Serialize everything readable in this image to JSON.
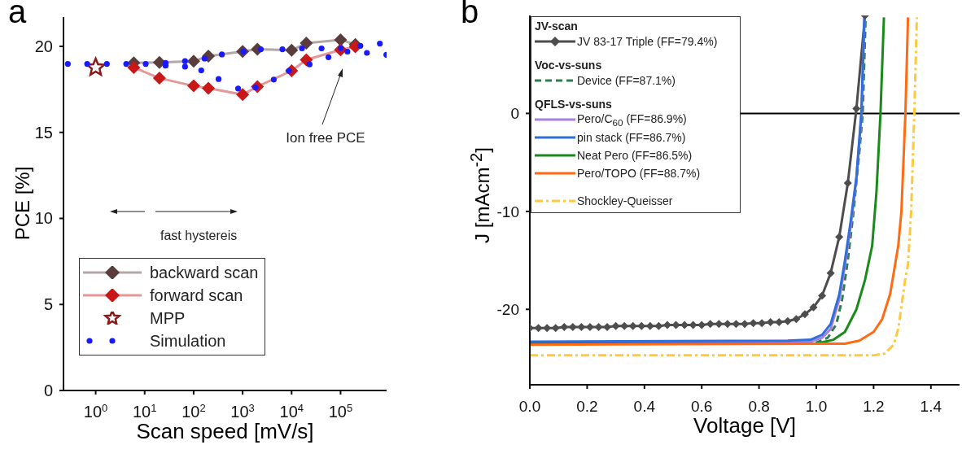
{
  "chart_data": [
    {
      "type": "line",
      "title": "a",
      "xlabel": "Scan speed [mV/s]",
      "ylabel": "PCE [%]",
      "log": "x",
      "xlim": [
        0.22,
        870000
      ],
      "xticks": [
        {
          "value": 1,
          "label": "10$^{0}$"
        },
        {
          "value": 10,
          "label": "10$^{1}$"
        },
        {
          "value": 100,
          "label": "10$^{2}$"
        },
        {
          "value": 1000,
          "label": "10$^{3}$"
        },
        {
          "value": 10000,
          "label": "10$^{4}$"
        },
        {
          "value": 100000,
          "label": "10$^{5}$"
        }
      ],
      "ylim": [
        0,
        21.7
      ],
      "yticks": [
        0,
        5,
        10,
        15,
        20
      ],
      "grid": false,
      "legend": "bottom left",
      "annotations": [
        "Ion free PCE",
        "fast hystereis"
      ],
      "series": [
        {
          "name": "backward scan",
          "type": "line",
          "marker": "diamond",
          "color": "#5a3c3c",
          "x": [
            6,
            20,
            100,
            200,
            1000,
            2000,
            10000,
            20000,
            100000,
            200000
          ],
          "values": [
            19.04,
            19.07,
            19.14,
            19.43,
            19.7,
            19.83,
            19.77,
            20.19,
            20.38,
            20.11
          ]
        },
        {
          "name": "forward scan",
          "type": "line",
          "marker": "diamond",
          "color": "#c81818",
          "x": [
            6,
            20,
            100,
            200,
            1000,
            2000,
            10000,
            20000,
            100000,
            200000
          ],
          "values": [
            18.77,
            18.15,
            17.7,
            17.56,
            17.2,
            17.66,
            18.58,
            19.22,
            19.8,
            19.98
          ]
        },
        {
          "name": "MPP",
          "type": "scatter",
          "marker": "star",
          "color": "#8b1a1a",
          "x": [
            1
          ],
          "values": [
            18.77
          ]
        },
        {
          "name": "Simulation",
          "type": "scatter",
          "marker": "circle",
          "color": "#1a1aff",
          "x": [
            0.27,
            0.67,
            1.69,
            4.2,
            10.5,
            26.7,
            26.7,
            66.7,
            66.7,
            143,
            167,
            323,
            377,
            809,
            1040,
            1830,
            2350,
            4330,
            6500,
            8820,
            16300,
            23300,
            40900,
            56600,
            101000,
            138000,
            254000,
            345000,
            634000,
            860000
          ],
          "values": [
            18.98,
            18.98,
            18.98,
            18.98,
            18.98,
            19.04,
            18.88,
            19.14,
            18.82,
            18.6,
            19.29,
            18.1,
            19.53,
            17.55,
            19.7,
            17.61,
            19.83,
            18.07,
            19.83,
            18.58,
            19.88,
            18.95,
            19.88,
            19.37,
            19.89,
            19.69,
            20.03,
            19.62,
            20.16,
            19.51
          ]
        }
      ]
    },
    {
      "type": "line",
      "title": "b",
      "xlabel": "Voltage [V]",
      "ylabel": "J [mAcm$^{-2}$]",
      "xlim": [
        0,
        1.5
      ],
      "xticks": [
        {
          "value": 0,
          "label": "0.0"
        },
        0.2,
        0.4,
        0.6,
        0.8,
        {
          "value": 1,
          "label": "1.0"
        },
        1.2,
        1.4
      ],
      "ylim": [
        -27.7,
        10
      ],
      "yticks": [
        -20,
        -10,
        0
      ],
      "grid": false,
      "legend": "top left",
      "ref_lines": [
        {
          "axis": "y",
          "value": 0,
          "color": "#000000"
        }
      ],
      "annotations": [
        "JV-scan",
        "Voc-vs-suns",
        "QFLS-vs-suns"
      ],
      "series": [
        {
          "name": "JV 83-17 Triple (FF=79.4%)",
          "type": "line",
          "marker": "diamond",
          "line_style": "solid",
          "color": "#4d4d4d",
          "x": [
            0,
            0.03,
            0.06,
            0.09,
            0.12,
            0.15,
            0.18,
            0.21,
            0.24,
            0.27,
            0.3,
            0.33,
            0.36,
            0.39,
            0.42,
            0.45,
            0.48,
            0.51,
            0.54,
            0.57,
            0.6,
            0.63,
            0.66,
            0.69,
            0.72,
            0.75,
            0.78,
            0.81,
            0.84,
            0.87,
            0.9,
            0.93,
            0.96,
            0.99,
            1.02,
            1.05,
            1.08,
            1.11,
            1.14,
            1.17
          ],
          "values": [
            -21.9,
            -21.9,
            -21.9,
            -21.9,
            -21.8,
            -21.8,
            -21.8,
            -21.8,
            -21.8,
            -21.8,
            -21.7,
            -21.7,
            -21.7,
            -21.7,
            -21.7,
            -21.7,
            -21.6,
            -21.6,
            -21.6,
            -21.6,
            -21.6,
            -21.5,
            -21.5,
            -21.5,
            -21.5,
            -21.5,
            -21.4,
            -21.4,
            -21.3,
            -21.3,
            -21.2,
            -21.0,
            -20.5,
            -19.8,
            -18.6,
            -16.3,
            -12.6,
            -7.1,
            0.5,
            10
          ]
        },
        {
          "name": "Device (FF=87.1%)",
          "type": "line",
          "marker": "none",
          "line_style": "dashed",
          "color": "#2e7d4f",
          "x": [
            0,
            1.0,
            1.04,
            1.07,
            1.09,
            1.11,
            1.13,
            1.15,
            1.162,
            1.172
          ],
          "values": [
            -23.5,
            -23.4,
            -22.9,
            -21.5,
            -19,
            -15,
            -10,
            -4,
            0,
            9.8
          ]
        },
        {
          "name": "Pero/C$_{60}$ (FF=86.9%)",
          "type": "line",
          "marker": "none",
          "line_style": "solid",
          "color": "#a97fe0",
          "x": [
            0,
            0.98,
            1.02,
            1.05,
            1.08,
            1.1,
            1.12,
            1.14,
            1.158,
            1.168
          ],
          "values": [
            -23.4,
            -23.3,
            -22.9,
            -22,
            -19,
            -15.5,
            -11.5,
            -6.7,
            0,
            9.8
          ]
        },
        {
          "name": "pin stack (FF=86.7%)",
          "type": "line",
          "marker": "none",
          "line_style": "solid",
          "color": "#2f6fdb",
          "x": [
            0,
            0.9,
            0.98,
            1.02,
            1.05,
            1.08,
            1.1,
            1.12,
            1.14,
            1.157,
            1.168
          ],
          "values": [
            -23.3,
            -23.2,
            -23.1,
            -22.6,
            -21.5,
            -18.5,
            -15,
            -11,
            -6.5,
            0,
            9.8
          ]
        },
        {
          "name": "Neat Pero (FF=86.5%)",
          "type": "line",
          "marker": "none",
          "line_style": "solid",
          "color": "#1a8a1a",
          "x": [
            0,
            1.0,
            1.06,
            1.1,
            1.14,
            1.17,
            1.195,
            1.21,
            1.224,
            1.236
          ],
          "values": [
            -23.5,
            -23.5,
            -23.1,
            -22.3,
            -20,
            -17,
            -13.5,
            -8,
            0,
            9.8
          ]
        },
        {
          "name": "Pero/TOPO (FF=88.7%)",
          "type": "line",
          "marker": "none",
          "line_style": "solid",
          "color": "#ff6a13",
          "x": [
            0,
            1.1,
            1.15,
            1.2,
            1.23,
            1.258,
            1.286,
            1.297,
            1.311,
            1.32
          ],
          "values": [
            -23.6,
            -23.5,
            -23.2,
            -22.3,
            -21,
            -18.4,
            -13.5,
            -10,
            0,
            9.8
          ]
        },
        {
          "name": "Shockley-Queisser",
          "type": "line",
          "marker": "none",
          "line_style": "dashdot",
          "color": "#ffc83d",
          "x": [
            0,
            1.2,
            1.24,
            1.27,
            1.286,
            1.31,
            1.32,
            1.331,
            1.342,
            1.351
          ],
          "values": [
            -24.7,
            -24.7,
            -24.5,
            -23.6,
            -22,
            -17,
            -15.4,
            -10,
            0,
            9.8
          ]
        }
      ]
    }
  ]
}
